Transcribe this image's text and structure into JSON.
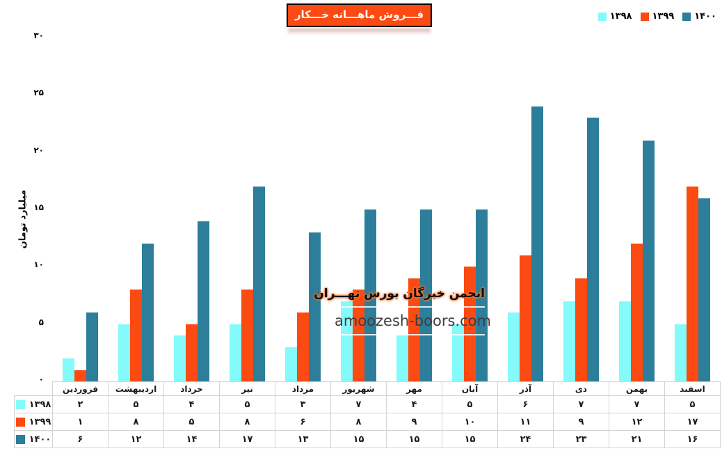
{
  "title_box": {
    "text": "فـــروش ماهـــانه خـــکار",
    "bg_color": "#FB4A14",
    "border_color": "#000000",
    "text_color": "#FFFFFF"
  },
  "watermark": {
    "line1": "انجمن خبرگان بورس تهـــران",
    "line2": "amoozesh-boors.com"
  },
  "y_axis": {
    "label": "میلیارد تومان",
    "tick_labels": [
      "۳۰",
      "۲۵",
      "۲۰",
      "۱۵",
      "۱۰",
      "۵",
      "۰"
    ]
  },
  "chart_data": {
    "type": "bar",
    "title": "فروش ماهانه خکار",
    "xlabel": "",
    "ylabel": "میلیارد تومان",
    "ylim": [
      0,
      30
    ],
    "grid": false,
    "legend_position": "top-right",
    "categories": [
      "فروردین",
      "اردیبهشت",
      "خرداد",
      "تیر",
      "مرداد",
      "شهریور",
      "مهر",
      "آبان",
      "آذر",
      "دی",
      "بهمن",
      "اسفند"
    ],
    "series": [
      {
        "name": "۱۳۹۸",
        "color": "#85FAFA",
        "values": [
          2,
          5,
          4,
          5,
          3,
          7,
          4,
          5,
          6,
          7,
          7,
          5
        ],
        "labels": [
          "۲",
          "۵",
          "۴",
          "۵",
          "۳",
          "۷",
          "۴",
          "۵",
          "۶",
          "۷",
          "۷",
          "۵"
        ]
      },
      {
        "name": "۱۳۹۹",
        "color": "#FB4A12",
        "values": [
          1,
          8,
          5,
          8,
          6,
          8,
          9,
          10,
          11,
          9,
          12,
          17
        ],
        "labels": [
          "۱",
          "۸",
          "۵",
          "۸",
          "۶",
          "۸",
          "۹",
          "۱۰",
          "۱۱",
          "۹",
          "۱۲",
          "۱۷"
        ]
      },
      {
        "name": "۱۴۰۰",
        "color": "#2C7E9A",
        "values": [
          6,
          12,
          14,
          17,
          13,
          15,
          15,
          15,
          24,
          23,
          21,
          16
        ],
        "labels": [
          "۶",
          "۱۲",
          "۱۴",
          "۱۷",
          "۱۳",
          "۱۵",
          "۱۵",
          "۱۵",
          "۲۴",
          "۲۳",
          "۲۱",
          "۱۶"
        ]
      }
    ]
  }
}
